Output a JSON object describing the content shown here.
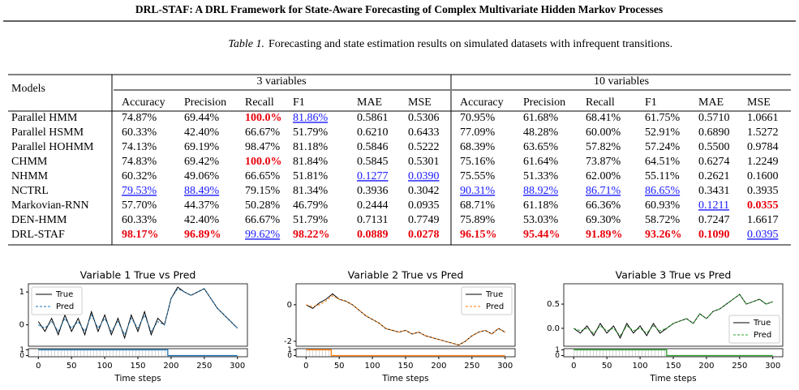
{
  "header": {
    "title": "DRL-STAF: A DRL Framework for State-Aware Forecasting of Complex Multivariate Hidden Markov Processes"
  },
  "caption": {
    "label": "Table 1.",
    "text": "Forecasting and state estimation results on simulated datasets with infrequent transitions."
  },
  "table": {
    "corner": "Models",
    "groups": [
      "3 variables",
      "10 variables"
    ],
    "columns": [
      "Accuracy",
      "Precision",
      "Recall",
      "F1",
      "MAE",
      "MSE"
    ],
    "rows": [
      {
        "model": "Parallel HMM",
        "cells": [
          "74.87%",
          "69.44%",
          {
            "text": "100.0%",
            "style": "best"
          },
          {
            "text": "81.86%",
            "style": "second"
          },
          "0.5861",
          "0.5306",
          "70.95%",
          "61.68%",
          "68.41%",
          "61.75%",
          "0.5710",
          "1.0661"
        ]
      },
      {
        "model": "Parallel HSMM",
        "cells": [
          "60.33%",
          "42.40%",
          "66.67%",
          "51.79%",
          "0.6210",
          "0.6433",
          "77.09%",
          "48.28%",
          "60.00%",
          "52.91%",
          "0.6890",
          "1.5272"
        ]
      },
      {
        "model": "Parallel HOHMM",
        "cells": [
          "74.13%",
          "69.19%",
          "98.47%",
          "81.18%",
          "0.5846",
          "0.5222",
          "68.39%",
          "63.65%",
          "57.82%",
          "57.24%",
          "0.5500",
          "0.9784"
        ]
      },
      {
        "model": "CHMM",
        "cells": [
          "74.83%",
          "69.42%",
          {
            "text": "100.0%",
            "style": "best"
          },
          "81.84%",
          "0.5845",
          "0.5301",
          "75.16%",
          "61.64%",
          "73.87%",
          "64.51%",
          "0.6274",
          "1.2249"
        ]
      },
      {
        "model": "NHMM",
        "cells": [
          "60.32%",
          "49.06%",
          "66.65%",
          "51.81%",
          {
            "text": "0.1277",
            "style": "second"
          },
          {
            "text": "0.0390",
            "style": "second"
          },
          "75.55%",
          "51.33%",
          "62.00%",
          "55.11%",
          "0.2621",
          "0.1600"
        ]
      },
      {
        "model": "NCTRL",
        "cells": [
          {
            "text": "79.53%",
            "style": "second"
          },
          {
            "text": "88.49%",
            "style": "second"
          },
          "79.15%",
          "81.34%",
          "0.3936",
          "0.3042",
          {
            "text": "90.31%",
            "style": "second"
          },
          {
            "text": "88.92%",
            "style": "second"
          },
          {
            "text": "86.71%",
            "style": "second"
          },
          {
            "text": "86.65%",
            "style": "second"
          },
          "0.3431",
          "0.3935"
        ]
      },
      {
        "model": "Markovian-RNN",
        "cells": [
          "57.70%",
          "44.37%",
          "50.28%",
          "46.79%",
          "0.2444",
          "0.0935",
          "68.71%",
          "61.18%",
          "66.36%",
          "60.93%",
          {
            "text": "0.1211",
            "style": "second"
          },
          {
            "text": "0.0355",
            "style": "best"
          }
        ]
      },
      {
        "model": "DEN-HMM",
        "cells": [
          "60.33%",
          "42.40%",
          "66.67%",
          "51.79%",
          "0.7131",
          "0.7749",
          "75.89%",
          "53.03%",
          "69.30%",
          "58.72%",
          "0.7247",
          "1.6617"
        ]
      },
      {
        "model": "DRL-STAF",
        "cells": [
          {
            "text": "98.17%",
            "style": "best"
          },
          {
            "text": "96.89%",
            "style": "best"
          },
          {
            "text": "99.62%",
            "style": "second"
          },
          {
            "text": "98.22%",
            "style": "best"
          },
          {
            "text": "0.0889",
            "style": "best"
          },
          {
            "text": "0.0278",
            "style": "best"
          },
          {
            "text": "96.15%",
            "style": "best"
          },
          {
            "text": "95.44%",
            "style": "best"
          },
          {
            "text": "91.89%",
            "style": "best"
          },
          {
            "text": "93.26%",
            "style": "best"
          },
          {
            "text": "0.1090",
            "style": "best"
          },
          {
            "text": "0.0395",
            "style": "second"
          }
        ]
      }
    ]
  },
  "chart_data": [
    {
      "type": "line",
      "title": "Variable 1 True vs Pred",
      "xlabel": "Time steps",
      "x": [
        0,
        10,
        20,
        30,
        40,
        50,
        60,
        70,
        80,
        90,
        100,
        110,
        120,
        130,
        140,
        150,
        160,
        170,
        180,
        190,
        200,
        210,
        220,
        230,
        240,
        250,
        260,
        270,
        280,
        290,
        300
      ],
      "series": [
        {
          "name": "True",
          "color": "#000000",
          "linestyle": "solid",
          "values": [
            0.1,
            -0.2,
            0.2,
            -0.3,
            0.3,
            -0.2,
            0.2,
            -0.3,
            0.4,
            -0.2,
            0.3,
            -0.3,
            0.2,
            -0.4,
            0.3,
            -0.2,
            0.4,
            -0.3,
            0.2,
            0.0,
            0.8,
            1.15,
            1.0,
            0.9,
            1.0,
            1.1,
            0.8,
            0.5,
            0.3,
            0.1,
            -0.1
          ]
        },
        {
          "name": "Pred",
          "color": "#1f77b4",
          "linestyle": "dashed",
          "values": [
            0.0,
            -0.1,
            0.1,
            -0.2,
            0.2,
            -0.1,
            0.1,
            -0.2,
            0.3,
            -0.1,
            0.2,
            -0.2,
            0.1,
            -0.3,
            0.2,
            -0.1,
            0.3,
            -0.2,
            0.1,
            0.0,
            0.8,
            1.1,
            1.0,
            0.9,
            1.0,
            1.1,
            0.8,
            0.5,
            0.3,
            0.1,
            -0.1
          ]
        }
      ],
      "xlim": [
        -15,
        315
      ],
      "xticks": [
        0,
        50,
        100,
        150,
        200,
        250,
        300
      ],
      "ylim": [
        -0.65,
        1.25
      ],
      "yticks": [
        0,
        1
      ],
      "legend": "upper left",
      "state": {
        "x": [
          0,
          195,
          195,
          300
        ],
        "values": [
          1,
          1,
          0,
          0
        ],
        "color": "#1f77b4",
        "ylim": [
          -0.2,
          1.2
        ],
        "yticks": [
          0,
          1
        ]
      }
    },
    {
      "type": "line",
      "title": "Variable 2 True vs Pred",
      "xlabel": "Time steps",
      "x": [
        0,
        10,
        20,
        30,
        40,
        50,
        60,
        70,
        80,
        90,
        100,
        110,
        120,
        130,
        140,
        150,
        160,
        170,
        180,
        190,
        200,
        210,
        220,
        230,
        240,
        250,
        260,
        270,
        280,
        290,
        300
      ],
      "series": [
        {
          "name": "True",
          "color": "#000000",
          "linestyle": "solid",
          "values": [
            0.0,
            -0.2,
            0.1,
            0.3,
            0.6,
            0.3,
            0.2,
            0.0,
            -0.3,
            -0.6,
            -0.8,
            -1.0,
            -1.3,
            -1.4,
            -1.5,
            -1.4,
            -1.6,
            -1.5,
            -1.7,
            -1.8,
            -1.9,
            -2.0,
            -2.1,
            -2.2,
            -2.0,
            -1.7,
            -1.5,
            -1.4,
            -1.6,
            -1.3,
            -1.5
          ]
        },
        {
          "name": "Pred",
          "color": "#ff7f0e",
          "linestyle": "dashed",
          "values": [
            0.0,
            -0.1,
            0.0,
            0.2,
            0.5,
            0.3,
            0.2,
            0.0,
            -0.3,
            -0.6,
            -0.8,
            -1.0,
            -1.3,
            -1.4,
            -1.5,
            -1.4,
            -1.6,
            -1.5,
            -1.7,
            -1.8,
            -1.9,
            -2.0,
            -2.1,
            -2.2,
            -2.0,
            -1.7,
            -1.5,
            -1.4,
            -1.6,
            -1.3,
            -1.5
          ]
        }
      ],
      "xlim": [
        -15,
        315
      ],
      "xticks": [
        0,
        50,
        100,
        150,
        200,
        250,
        300
      ],
      "ylim": [
        -2.27,
        1.15
      ],
      "yticks": [
        -2,
        0
      ],
      "legend": "upper right",
      "state": {
        "x": [
          0,
          38,
          38,
          300
        ],
        "values": [
          1,
          1,
          0,
          0
        ],
        "color": "#ff7f0e",
        "ylim": [
          -0.2,
          1.2
        ],
        "yticks": [
          0,
          1
        ]
      }
    },
    {
      "type": "line",
      "title": "Variable 3 True vs Pred",
      "xlabel": "Time steps",
      "x": [
        0,
        10,
        20,
        30,
        40,
        50,
        60,
        70,
        80,
        90,
        100,
        110,
        120,
        130,
        140,
        150,
        160,
        170,
        180,
        190,
        200,
        210,
        220,
        230,
        240,
        250,
        260,
        270,
        280,
        290,
        300
      ],
      "series": [
        {
          "name": "True",
          "color": "#000000",
          "linestyle": "solid",
          "values": [
            0.0,
            -0.1,
            0.05,
            -0.15,
            0.1,
            -0.1,
            0.05,
            -0.2,
            0.1,
            -0.1,
            0.05,
            -0.15,
            0.1,
            -0.1,
            0.0,
            0.1,
            0.15,
            0.2,
            0.1,
            0.3,
            0.2,
            0.35,
            0.4,
            0.5,
            0.6,
            0.7,
            0.5,
            0.55,
            0.6,
            0.5,
            0.55
          ]
        },
        {
          "name": "Pred",
          "color": "#2ca02c",
          "linestyle": "dashed",
          "values": [
            0.0,
            -0.05,
            0.0,
            -0.1,
            0.05,
            -0.05,
            0.0,
            -0.15,
            0.05,
            -0.05,
            0.0,
            -0.1,
            0.05,
            -0.05,
            0.0,
            0.1,
            0.15,
            0.2,
            0.1,
            0.3,
            0.2,
            0.35,
            0.4,
            0.5,
            0.6,
            0.7,
            0.5,
            0.55,
            0.6,
            0.5,
            0.55
          ]
        }
      ],
      "xlim": [
        -15,
        315
      ],
      "xticks": [
        0,
        50,
        100,
        150,
        200,
        250,
        300
      ],
      "ylim": [
        -0.37,
        0.92
      ],
      "yticks": [
        {
          "value": 0,
          "label": "0.0"
        },
        {
          "value": 0.5,
          "label": "0.5"
        }
      ],
      "legend": "lower right",
      "state": {
        "x": [
          0,
          140,
          140,
          300
        ],
        "values": [
          1,
          1,
          0,
          0
        ],
        "color": "#2ca02c",
        "ylim": [
          -0.2,
          1.2
        ],
        "yticks": [
          0,
          1
        ]
      }
    }
  ]
}
